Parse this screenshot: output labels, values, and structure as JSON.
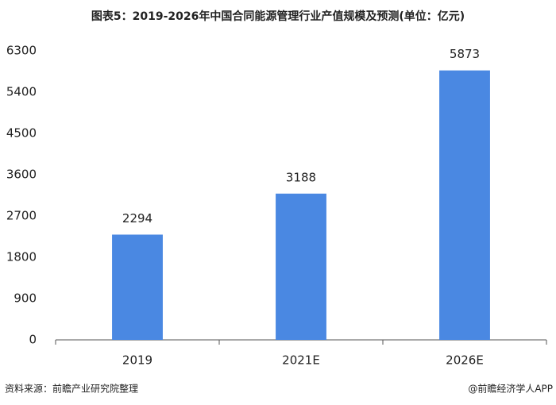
{
  "chart_data": {
    "type": "bar",
    "title": "图表5：2019-2026年中国合同能源管理行业产值规模及预测(单位：亿元)",
    "categories": [
      "2019",
      "2021E",
      "2026E"
    ],
    "values": [
      2294,
      3188,
      5873
    ],
    "color": "#4a88e2",
    "ylim": [
      0,
      6300
    ],
    "yticks": [
      0,
      900,
      1800,
      2700,
      3600,
      4500,
      5400,
      6300
    ],
    "grid": false,
    "source": "资料来源：前瞻产业研究院整理",
    "credit": "@前瞻经济学人APP"
  }
}
